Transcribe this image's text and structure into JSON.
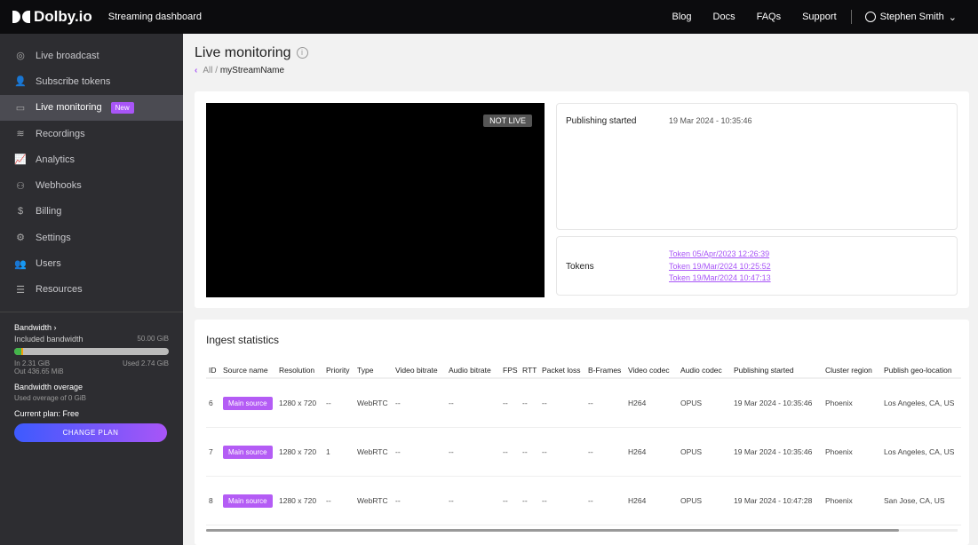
{
  "header": {
    "brand": "Dolby.io",
    "app_title": "Streaming dashboard",
    "links": [
      "Blog",
      "Docs",
      "FAQs",
      "Support"
    ],
    "user": "Stephen Smith"
  },
  "sidebar": {
    "items": [
      {
        "label": "Live broadcast",
        "icon": "broadcast-icon",
        "glyph": "◎"
      },
      {
        "label": "Subscribe tokens",
        "icon": "user-key-icon",
        "glyph": "👤"
      },
      {
        "label": "Live monitoring",
        "icon": "monitor-icon",
        "glyph": "▭",
        "badge": "New",
        "active": true
      },
      {
        "label": "Recordings",
        "icon": "layers-icon",
        "glyph": "≋"
      },
      {
        "label": "Analytics",
        "icon": "chart-icon",
        "glyph": "📈"
      },
      {
        "label": "Webhooks",
        "icon": "webhook-icon",
        "glyph": "⚇"
      },
      {
        "label": "Billing",
        "icon": "dollar-icon",
        "glyph": "$"
      },
      {
        "label": "Settings",
        "icon": "user-gear-icon",
        "glyph": "⚙"
      },
      {
        "label": "Users",
        "icon": "users-icon",
        "glyph": "👥"
      },
      {
        "label": "Resources",
        "icon": "list-icon",
        "glyph": "☰"
      }
    ],
    "bandwidth": {
      "title": "Bandwidth",
      "included_label": "Included bandwidth",
      "included_value": "50.00 GiB",
      "in": "In 2.31 GiB",
      "out": "Out 436.65 MiB",
      "used": "Used 2.74 GiB",
      "used_fraction": 0.055,
      "overage_title": "Bandwidth overage",
      "overage_text": "Used overage of 0 GiB",
      "plan": "Current plan: Free",
      "change_plan": "CHANGE PLAN"
    }
  },
  "main": {
    "title": "Live monitoring",
    "breadcrumb": {
      "all": "All",
      "stream": "myStreamName"
    },
    "video": {
      "status": "NOT LIVE"
    },
    "publishing": {
      "label": "Publishing started",
      "value": "19 Mar 2024 - 10:35:46"
    },
    "tokens": {
      "label": "Tokens",
      "items": [
        "Token 05/Apr/2023 12:26:39",
        "Token 19/Mar/2024 10:25:52",
        "Token 19/Mar/2024 10:47:13"
      ]
    },
    "ingest": {
      "title": "Ingest statistics",
      "columns": [
        "ID",
        "Source name",
        "Resolution",
        "Priority",
        "Type",
        "Video bitrate",
        "Audio bitrate",
        "FPS",
        "RTT",
        "Packet loss",
        "B-Frames",
        "Video codec",
        "Audio codec",
        "Publishing started",
        "Cluster region",
        "Publish geo-location"
      ],
      "rows": [
        [
          "6",
          "Main source",
          "1280 x 720",
          "--",
          "WebRTC",
          "--",
          "--",
          "--",
          "--",
          "--",
          "--",
          "H264",
          "OPUS",
          "19 Mar 2024 - 10:35:46",
          "Phoenix",
          "Los Angeles, CA, US"
        ],
        [
          "7",
          "Main source",
          "1280 x 720",
          "1",
          "WebRTC",
          "--",
          "--",
          "--",
          "--",
          "--",
          "--",
          "H264",
          "OPUS",
          "19 Mar 2024 - 10:35:46",
          "Phoenix",
          "Los Angeles, CA, US"
        ],
        [
          "8",
          "Main source",
          "1280 x 720",
          "--",
          "WebRTC",
          "--",
          "--",
          "--",
          "--",
          "--",
          "--",
          "H264",
          "OPUS",
          "19 Mar 2024 - 10:47:28",
          "Phoenix",
          "San Jose, CA, US"
        ]
      ]
    }
  },
  "colors": {
    "accent": "#a855f7",
    "sidebar": "#2d2d31",
    "topbar": "#0c0c0e"
  }
}
